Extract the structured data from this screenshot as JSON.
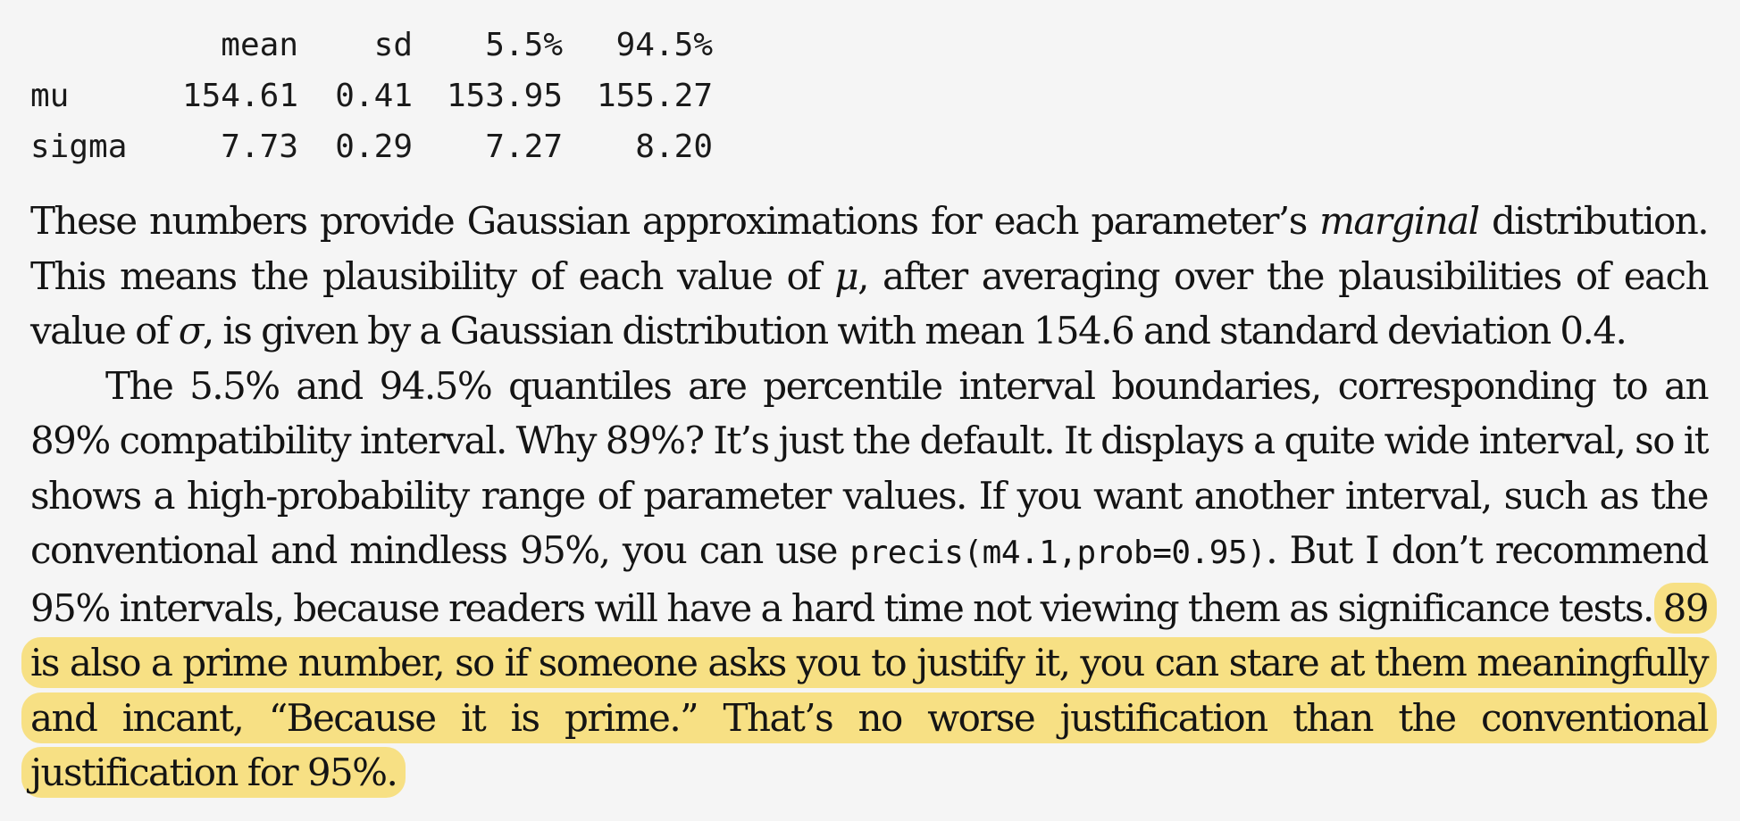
{
  "table": {
    "headers": [
      "",
      "mean",
      "sd",
      "5.5%",
      "94.5%"
    ],
    "rows": [
      {
        "name": "mu",
        "mean": "154.61",
        "sd": "0.41",
        "lo": "153.95",
        "hi": "155.27"
      },
      {
        "name": "sigma",
        "mean": "7.73",
        "sd": "0.29",
        "lo": "7.27",
        "hi": "8.20"
      }
    ]
  },
  "para1": {
    "t1": "These numbers provide Gaussian approximations for each parameter’s ",
    "t2": "marginal",
    "t3": " distribution. This means the plausibility of each value of ",
    "t4": "μ",
    "t5": ", after averaging over the plausibilities of each value of ",
    "t6": "σ",
    "t7": ", is given by a Gaussian distribution with mean 154.6 and standard deviation 0.4."
  },
  "para2": {
    "t1": "The 5.5% and 94.5% quantiles are percentile interval boundaries, corresponding to an 89% compatibility interval. Why 89%? It’s just the default. It displays a quite wide interval, so it shows a high-probability range of parameter values. If you want another interval, such as the conventional and mindless 95%, you can use ",
    "code": "precis(m4.1,prob=0.95)",
    "t2": ". But I don’t recommend 95% intervals, because readers will have a hard time not viewing them as signif­icance tests. ",
    "highlight": "89 is also a prime number, so if someone asks you to justify it, you can stare at them meaningfully and incant, “Because it is prime.” That’s no worse justification than the conventional justification for 95%."
  },
  "colors": {
    "background": "#f5f5f5",
    "highlight": "#f7e084",
    "text": "#141414"
  }
}
